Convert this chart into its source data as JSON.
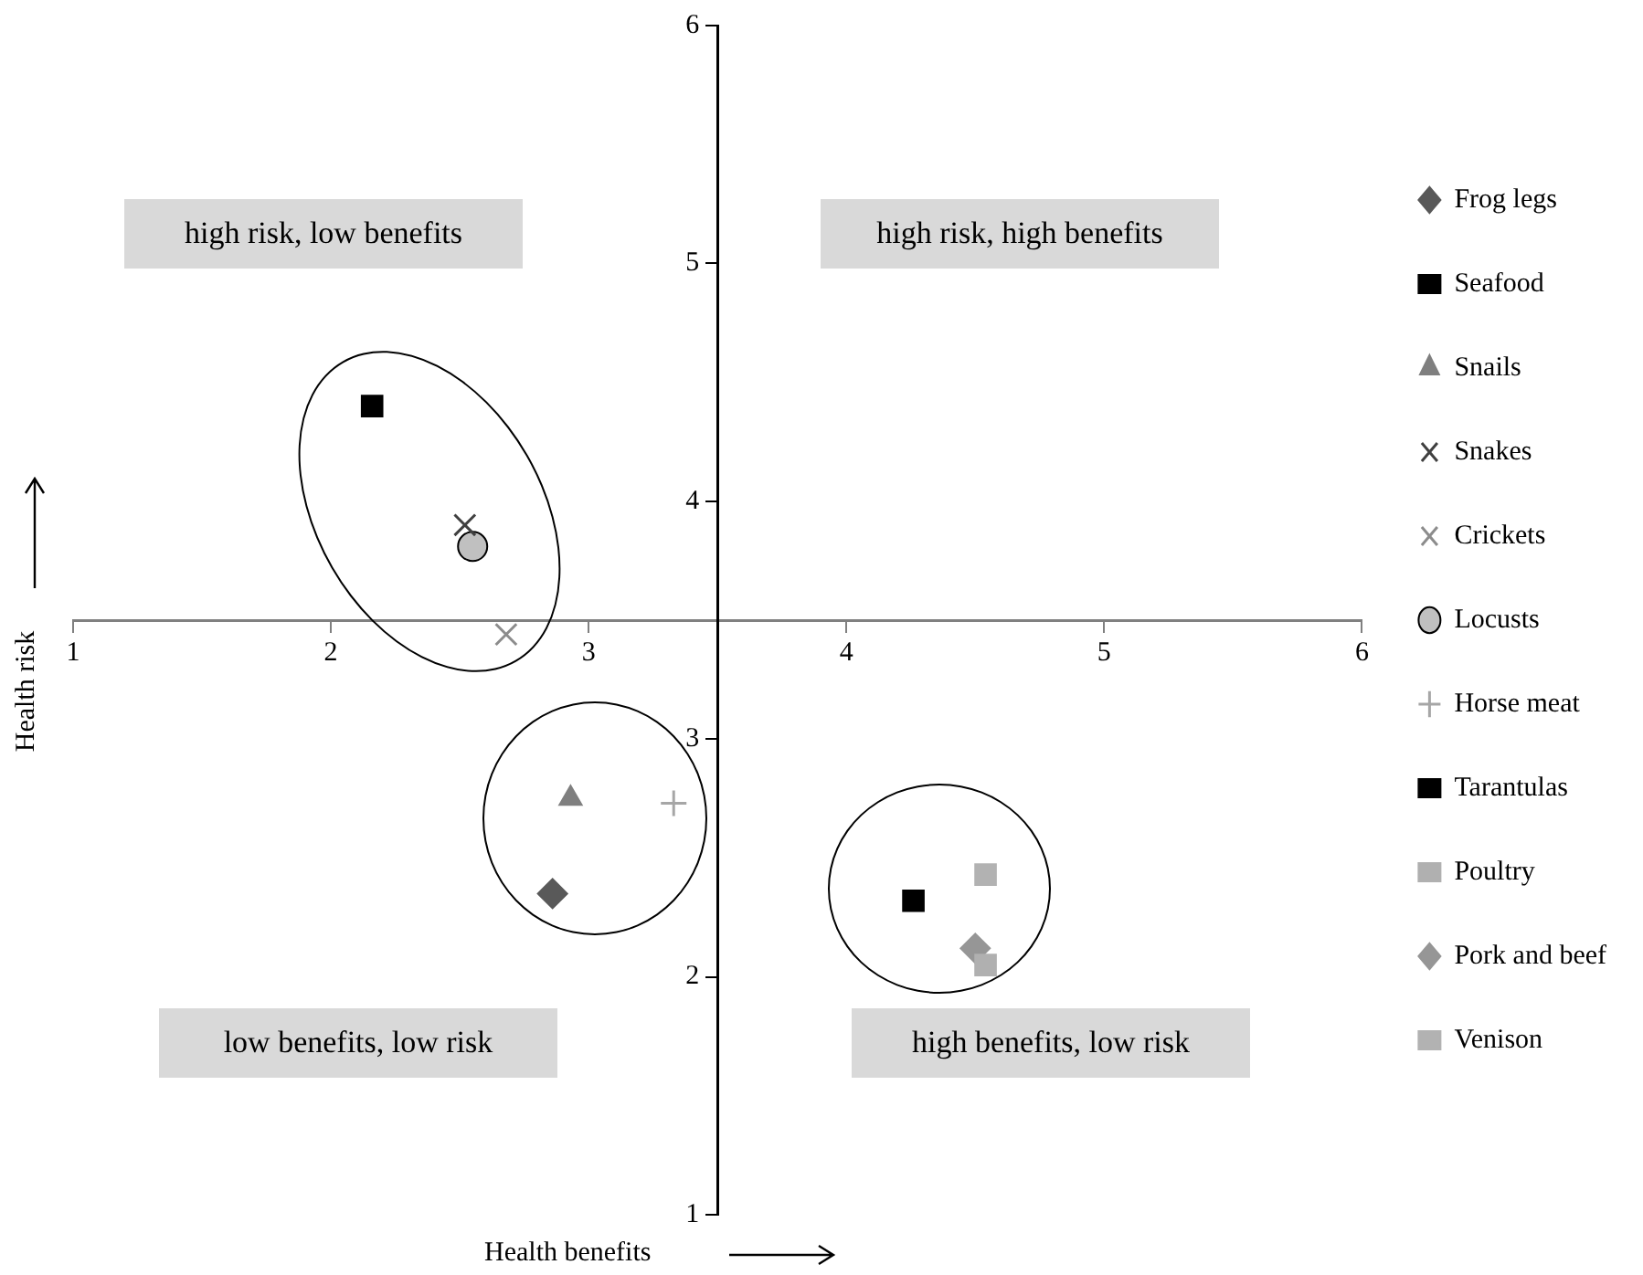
{
  "chart_data": {
    "type": "scatter",
    "xlabel": "Health benefits",
    "ylabel": "Health risk",
    "xlim": [
      1,
      6
    ],
    "ylim": [
      1,
      6
    ],
    "xticks": [
      1,
      2,
      3,
      4,
      5,
      6
    ],
    "yticks": [
      1,
      2,
      3,
      4,
      5,
      6
    ],
    "grid": false,
    "legend": "right",
    "annotations": [
      "high risk, low benefits",
      "high risk, high benefits",
      "low benefits, low risk",
      "high benefits, low risk"
    ],
    "series": [
      {
        "name": "Frog legs",
        "color": "#595959",
        "marker": "diamond",
        "x": [
          2.86
        ],
        "values": [
          2.35
        ]
      },
      {
        "name": "Seafood",
        "color": "#000000",
        "marker": "square",
        "x": [
          4.26
        ],
        "values": [
          2.32
        ]
      },
      {
        "name": "Snails",
        "color": "#7f7f7f",
        "marker": "triangle",
        "x": [
          2.93
        ],
        "values": [
          2.75
        ]
      },
      {
        "name": "Snakes",
        "color": "#404040",
        "marker": "cross",
        "x": [
          2.52
        ],
        "values": [
          3.9
        ]
      },
      {
        "name": "Crickets",
        "color": "#8c8c8c",
        "marker": "cross",
        "x": [
          2.68
        ],
        "values": [
          3.44
        ]
      },
      {
        "name": "Locusts",
        "color": "#c0c0c0",
        "marker": "circle",
        "x": [
          2.55
        ],
        "values": [
          3.81
        ]
      },
      {
        "name": "Horse meat",
        "color": "#a6a6a6",
        "marker": "plus",
        "x": [
          3.33
        ],
        "values": [
          2.73
        ]
      },
      {
        "name": "Tarantulas",
        "color": "#000000",
        "marker": "square",
        "x": [
          2.16
        ],
        "values": [
          4.4
        ]
      },
      {
        "name": "Poultry",
        "color": "#b0b0b0",
        "marker": "square",
        "x": [
          4.54
        ],
        "values": [
          2.05
        ]
      },
      {
        "name": "Pork and beef",
        "color": "#969696",
        "marker": "diamond",
        "x": [
          4.5
        ],
        "values": [
          2.12
        ]
      },
      {
        "name": "Venison",
        "color": "#b2b2b2",
        "marker": "square",
        "x": [
          4.54
        ],
        "values": [
          2.43
        ]
      }
    ]
  }
}
